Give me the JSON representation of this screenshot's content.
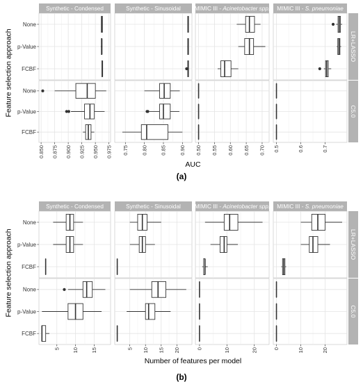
{
  "figure": {
    "panel_a_label": "(a)",
    "panel_b_label": "(b)",
    "colors": {
      "panel_bg": "#ffffff",
      "strip_bg": "#b3b3b3",
      "grid_major": "#e4e4e4",
      "grid_minor": "#f1f1f1",
      "panel_border": "#bfbfbf",
      "box_line": "#333333",
      "outlier": "#333333",
      "strip_text": "#ffffff",
      "axis_text": "#333333"
    }
  },
  "chart_data": [
    {
      "id": "a",
      "type": "boxplot",
      "xlabel": "AUC",
      "ylabel": "Feature selection approach",
      "categories": [
        "None",
        "p-Value",
        "FCBF"
      ],
      "columns": [
        {
          "label": "Synthetic - Condensed",
          "label_parts": [
            "Synthetic - Condensed"
          ],
          "xlim": [
            0.846,
            0.978
          ],
          "ticks": [
            0.85,
            0.875,
            0.9,
            0.925,
            0.95,
            0.975
          ],
          "tick_labels": [
            "0.850",
            "0.875",
            "0.900",
            "0.925",
            "0.950",
            "0.975"
          ]
        },
        {
          "label": "Synthetic - Sinusoidal",
          "label_parts": [
            "Synthetic - Sinusoidal"
          ],
          "xlim": [
            0.722,
            0.925
          ],
          "ticks": [
            0.75,
            0.8,
            0.85,
            0.9
          ],
          "tick_labels": [
            "0.75",
            "0.80",
            "0.85",
            "0.90"
          ]
        },
        {
          "label": "MIMIC III - Acinetobacter spp.",
          "label_parts": [
            "MIMIC III - ",
            "Acinetobacter spp."
          ],
          "xlim": [
            0.49,
            0.722
          ],
          "ticks": [
            0.5,
            0.55,
            0.6,
            0.65,
            0.7
          ],
          "tick_labels": [
            "0.50",
            "0.55",
            "0.60",
            "0.65",
            "0.70"
          ]
        },
        {
          "label": "MIMIC III - S. pneumoniae",
          "label_parts": [
            "MIMIC III - ",
            "S. pneumoniae"
          ],
          "xlim": [
            0.487,
            0.79
          ],
          "ticks": [
            0.5,
            0.6,
            0.7
          ],
          "tick_labels": [
            "0.5",
            "0.6",
            "0.7"
          ]
        }
      ],
      "rows": [
        {
          "label": "LR+LASSO",
          "boxes": [
            [
              {
                "category": "None",
                "min": 0.961,
                "q1": 0.961,
                "median": 0.962,
                "q3": 0.963,
                "max": 0.963,
                "outliers": []
              },
              {
                "category": "p-Value",
                "min": 0.96,
                "q1": 0.961,
                "median": 0.962,
                "q3": 0.962,
                "max": 0.963,
                "outliers": []
              },
              {
                "category": "FCBF",
                "min": 0.962,
                "q1": 0.962,
                "median": 0.963,
                "q3": 0.963,
                "max": 0.963,
                "outliers": []
              }
            ],
            [
              {
                "category": "None",
                "min": 0.914,
                "q1": 0.914,
                "median": 0.915,
                "q3": 0.916,
                "max": 0.916,
                "outliers": []
              },
              {
                "category": "p-Value",
                "min": 0.913,
                "q1": 0.914,
                "median": 0.915,
                "q3": 0.916,
                "max": 0.916,
                "outliers": []
              },
              {
                "category": "FCBF",
                "min": 0.912,
                "q1": 0.914,
                "median": 0.915,
                "q3": 0.916,
                "max": 0.917,
                "outliers": [
                  0.911
                ]
              }
            ],
            [
              {
                "category": "None",
                "min": 0.62,
                "q1": 0.648,
                "median": 0.66,
                "q3": 0.676,
                "max": 0.695,
                "outliers": []
              },
              {
                "category": "p-Value",
                "min": 0.625,
                "q1": 0.645,
                "median": 0.66,
                "q3": 0.673,
                "max": 0.71,
                "outliers": []
              },
              {
                "category": "FCBF",
                "min": 0.56,
                "q1": 0.57,
                "median": 0.582,
                "q3": 0.602,
                "max": 0.625,
                "outliers": []
              }
            ],
            [
              {
                "category": "None",
                "min": 0.745,
                "q1": 0.753,
                "median": 0.758,
                "q3": 0.763,
                "max": 0.77,
                "outliers": [
                  0.733
                ]
              },
              {
                "category": "p-Value",
                "min": 0.748,
                "q1": 0.752,
                "median": 0.757,
                "q3": 0.761,
                "max": 0.766,
                "outliers": []
              },
              {
                "category": "FCBF",
                "min": 0.695,
                "q1": 0.702,
                "median": 0.707,
                "q3": 0.713,
                "max": 0.725,
                "outliers": [
                  0.678
                ]
              }
            ]
          ]
        },
        {
          "label": "C5.0",
          "boxes": [
            [
              {
                "category": "None",
                "min": 0.875,
                "q1": 0.914,
                "median": 0.935,
                "q3": 0.95,
                "max": 0.97,
                "outliers": [
                  0.853
                ]
              },
              {
                "category": "p-Value",
                "min": 0.905,
                "q1": 0.93,
                "median": 0.94,
                "q3": 0.948,
                "max": 0.967,
                "outliers": [
                  0.897,
                  0.901
                ]
              },
              {
                "category": "FCBF",
                "min": 0.927,
                "q1": 0.932,
                "median": 0.937,
                "q3": 0.942,
                "max": 0.948,
                "outliers": []
              }
            ],
            [
              {
                "category": "None",
                "min": 0.8,
                "q1": 0.84,
                "median": 0.852,
                "q3": 0.868,
                "max": 0.893,
                "outliers": []
              },
              {
                "category": "p-Value",
                "min": 0.813,
                "q1": 0.84,
                "median": 0.85,
                "q3": 0.868,
                "max": 0.892,
                "outliers": [
                  0.807,
                  0.809
                ]
              },
              {
                "category": "FCBF",
                "min": 0.742,
                "q1": 0.792,
                "median": 0.806,
                "q3": 0.862,
                "max": 0.9,
                "outliers": []
              }
            ],
            [
              {
                "category": "None",
                "min": 0.5,
                "q1": 0.5,
                "median": 0.5,
                "q3": 0.5,
                "max": 0.5,
                "outliers": []
              },
              {
                "category": "p-Value",
                "min": 0.5,
                "q1": 0.5,
                "median": 0.5,
                "q3": 0.5,
                "max": 0.5,
                "outliers": []
              },
              {
                "category": "FCBF",
                "min": 0.5,
                "q1": 0.5,
                "median": 0.5,
                "q3": 0.5,
                "max": 0.5,
                "outliers": []
              }
            ],
            [
              {
                "category": "None",
                "min": 0.5,
                "q1": 0.5,
                "median": 0.5,
                "q3": 0.5,
                "max": 0.5,
                "outliers": []
              },
              {
                "category": "p-Value",
                "min": 0.5,
                "q1": 0.5,
                "median": 0.5,
                "q3": 0.5,
                "max": 0.5,
                "outliers": []
              },
              {
                "category": "FCBF",
                "min": 0.5,
                "q1": 0.5,
                "median": 0.5,
                "q3": 0.5,
                "max": 0.5,
                "outliers": []
              }
            ]
          ]
        }
      ]
    },
    {
      "id": "b",
      "type": "boxplot",
      "xlabel": "Number of features per model",
      "ylabel": "Feature selection approach",
      "categories": [
        "None",
        "p-Value",
        "FCBF"
      ],
      "columns": [
        {
          "label": "Synthetic - Condensed",
          "label_parts": [
            "Synthetic - Condensed"
          ],
          "xlim": [
            0.2,
            19.4
          ],
          "ticks": [
            5,
            10,
            15
          ],
          "tick_labels": [
            "5",
            "10",
            "15"
          ]
        },
        {
          "label": "Synthetic - Sinusoidal",
          "label_parts": [
            "Synthetic - Sinusoidal"
          ],
          "xlim": [
            0.2,
            24.8
          ],
          "ticks": [
            5,
            10,
            15,
            20
          ],
          "tick_labels": [
            "5",
            "10",
            "15",
            "20"
          ]
        },
        {
          "label": "MIMIC III - Acinetobacter spp.",
          "label_parts": [
            "MIMIC III - ",
            "Acinetobacter spp."
          ],
          "xlim": [
            -1.5,
            25.4
          ],
          "ticks": [
            0,
            10,
            20
          ],
          "tick_labels": [
            "0",
            "10",
            "20"
          ]
        },
        {
          "label": "MIMIC III - S. pneumoniae",
          "label_parts": [
            "MIMIC III - ",
            "S. pneumoniae"
          ],
          "xlim": [
            -1.3,
            29.0
          ],
          "ticks": [
            0,
            10,
            20
          ],
          "tick_labels": [
            "0",
            "10",
            "20"
          ]
        }
      ],
      "rows": [
        {
          "label": "LR+LASSO",
          "boxes": [
            [
              {
                "category": "None",
                "min": 4,
                "q1": 7.5,
                "median": 8.5,
                "q3": 9.5,
                "max": 12,
                "outliers": []
              },
              {
                "category": "p-Value",
                "min": 4,
                "q1": 7.5,
                "median": 8.5,
                "q3": 9.5,
                "max": 12,
                "outliers": []
              },
              {
                "category": "FCBF",
                "min": 2,
                "q1": 2,
                "median": 2,
                "q3": 2,
                "max": 2,
                "outliers": []
              }
            ],
            [
              {
                "category": "None",
                "min": 5,
                "q1": 7.5,
                "median": 9,
                "q3": 10.5,
                "max": 15,
                "outliers": []
              },
              {
                "category": "p-Value",
                "min": 5,
                "q1": 8,
                "median": 9,
                "q3": 10,
                "max": 13,
                "outliers": []
              },
              {
                "category": "FCBF",
                "min": 1,
                "q1": 1,
                "median": 1,
                "q3": 1,
                "max": 1,
                "outliers": []
              }
            ],
            [
              {
                "category": "None",
                "min": 2,
                "q1": 9,
                "median": 11,
                "q3": 14,
                "max": 23,
                "outliers": []
              },
              {
                "category": "p-Value",
                "min": 4,
                "q1": 7.5,
                "median": 9,
                "q3": 10,
                "max": 14,
                "outliers": []
              },
              {
                "category": "FCBF",
                "min": 1,
                "q1": 1.5,
                "median": 2,
                "q3": 2,
                "max": 3,
                "outliers": []
              }
            ],
            [
              {
                "category": "None",
                "min": 10,
                "q1": 14.5,
                "median": 17,
                "q3": 20,
                "max": 27,
                "outliers": []
              },
              {
                "category": "p-Value",
                "min": 10,
                "q1": 13.5,
                "median": 15,
                "q3": 17,
                "max": 22,
                "outliers": []
              },
              {
                "category": "FCBF",
                "min": 2,
                "q1": 2.5,
                "median": 3,
                "q3": 3.5,
                "max": 4,
                "outliers": []
              }
            ]
          ]
        },
        {
          "label": "C5.0",
          "boxes": [
            [
              {
                "category": "None",
                "min": 8,
                "q1": 12,
                "median": 13,
                "q3": 14.5,
                "max": 18,
                "outliers": [
                  7
                ]
              },
              {
                "category": "p-Value",
                "min": 1,
                "q1": 8,
                "median": 10,
                "q3": 12,
                "max": 17,
                "outliers": []
              },
              {
                "category": "FCBF",
                "min": 1,
                "q1": 1,
                "median": 1,
                "q3": 2,
                "max": 3,
                "outliers": []
              }
            ],
            [
              {
                "category": "None",
                "min": 5,
                "q1": 12,
                "median": 14,
                "q3": 16.5,
                "max": 23,
                "outliers": []
              },
              {
                "category": "p-Value",
                "min": 4,
                "q1": 10,
                "median": 11,
                "q3": 13,
                "max": 18,
                "outliers": []
              },
              {
                "category": "FCBF",
                "min": 1,
                "q1": 1,
                "median": 1,
                "q3": 1,
                "max": 1,
                "outliers": []
              }
            ],
            [
              {
                "category": "None",
                "min": 0,
                "q1": 0,
                "median": 0,
                "q3": 0,
                "max": 0,
                "outliers": []
              },
              {
                "category": "p-Value",
                "min": 0,
                "q1": 0,
                "median": 0,
                "q3": 0,
                "max": 0,
                "outliers": []
              },
              {
                "category": "FCBF",
                "min": 0,
                "q1": 0,
                "median": 0,
                "q3": 0,
                "max": 0,
                "outliers": []
              }
            ],
            [
              {
                "category": "None",
                "min": 0,
                "q1": 0,
                "median": 0,
                "q3": 0,
                "max": 0,
                "outliers": []
              },
              {
                "category": "p-Value",
                "min": 0,
                "q1": 0,
                "median": 0,
                "q3": 0,
                "max": 0,
                "outliers": []
              },
              {
                "category": "FCBF",
                "min": 0,
                "q1": 0,
                "median": 0,
                "q3": 0,
                "max": 0,
                "outliers": []
              }
            ]
          ]
        }
      ]
    }
  ]
}
